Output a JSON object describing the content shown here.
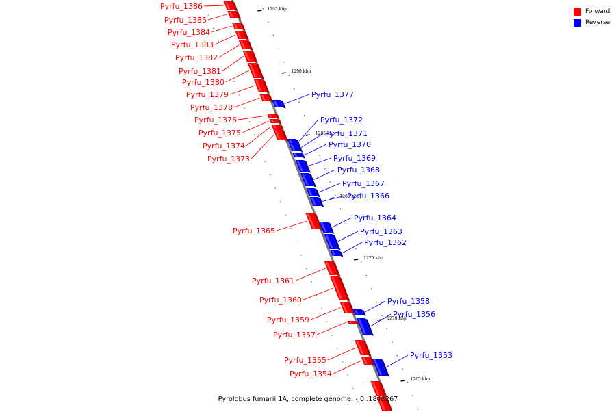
{
  "caption": "Pyrolobus fumarii 1A, complete genome. - 0..1843267",
  "colors": {
    "forward": "#ff0000",
    "reverse": "#0000ff",
    "forward_edge": "#b00000",
    "reverse_edge": "#0000a8",
    "axis": "#7a7a7a"
  },
  "legend": [
    {
      "label": "Forward",
      "color": "#ff0000"
    },
    {
      "label": "Reverse",
      "color": "#0000ff"
    }
  ],
  "ticks": [
    "1295 kbp",
    "1290 kbp",
    "1285 kbp",
    "1280 kbp",
    "1275 kbp",
    "1270 kbp",
    "1265 kbp"
  ],
  "genes": [
    {
      "name": "Pyrfu_1386",
      "strand": "forward"
    },
    {
      "name": "Pyrfu_1385",
      "strand": "forward"
    },
    {
      "name": "Pyrfu_1384",
      "strand": "forward"
    },
    {
      "name": "Pyrfu_1383",
      "strand": "forward"
    },
    {
      "name": "Pyrfu_1382",
      "strand": "forward"
    },
    {
      "name": "Pyrfu_1381",
      "strand": "forward"
    },
    {
      "name": "Pyrfu_1380",
      "strand": "forward"
    },
    {
      "name": "Pyrfu_1379",
      "strand": "forward"
    },
    {
      "name": "Pyrfu_1378",
      "strand": "forward"
    },
    {
      "name": "Pyrfu_1377",
      "strand": "reverse"
    },
    {
      "name": "Pyrfu_1376",
      "strand": "forward"
    },
    {
      "name": "Pyrfu_1375",
      "strand": "forward"
    },
    {
      "name": "Pyrfu_1374",
      "strand": "forward"
    },
    {
      "name": "Pyrfu_1373",
      "strand": "forward"
    },
    {
      "name": "Pyrfu_1372",
      "strand": "reverse"
    },
    {
      "name": "Pyrfu_1371",
      "strand": "reverse"
    },
    {
      "name": "Pyrfu_1370",
      "strand": "reverse"
    },
    {
      "name": "Pyrfu_1369",
      "strand": "reverse"
    },
    {
      "name": "Pyrfu_1368",
      "strand": "reverse"
    },
    {
      "name": "Pyrfu_1367",
      "strand": "reverse"
    },
    {
      "name": "Pyrfu_1366",
      "strand": "reverse"
    },
    {
      "name": "Pyrfu_1365",
      "strand": "forward"
    },
    {
      "name": "Pyrfu_1364",
      "strand": "reverse"
    },
    {
      "name": "Pyrfu_1363",
      "strand": "reverse"
    },
    {
      "name": "Pyrfu_1362",
      "strand": "reverse"
    },
    {
      "name": "Pyrfu_1361",
      "strand": "forward"
    },
    {
      "name": "Pyrfu_1360",
      "strand": "forward"
    },
    {
      "name": "Pyrfu_1359",
      "strand": "forward"
    },
    {
      "name": "Pyrfu_1358",
      "strand": "reverse"
    },
    {
      "name": "Pyrfu_1357",
      "strand": "forward"
    },
    {
      "name": "Pyrfu_1356",
      "strand": "reverse"
    },
    {
      "name": "Pyrfu_1355",
      "strand": "forward"
    },
    {
      "name": "Pyrfu_1354",
      "strand": "forward"
    },
    {
      "name": "Pyrfu_1353",
      "strand": "reverse"
    }
  ]
}
